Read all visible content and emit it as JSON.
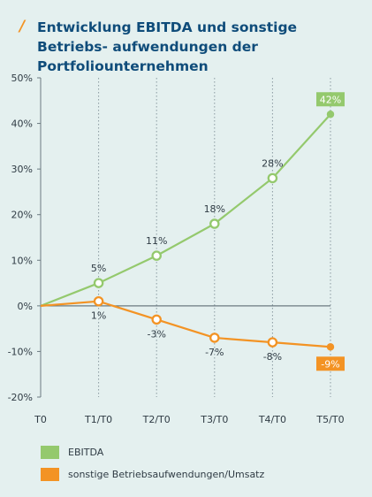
{
  "header": {
    "title": "Entwicklung EBITDA und sonstige Betriebs- aufwendungen der Portfoliounternehmen"
  },
  "colors": {
    "accent_orange": "#f39324",
    "ebitda_green": "#94c96d",
    "title_blue": "#0f4c7a",
    "background": "#e4f0ef"
  },
  "chart_data": {
    "type": "line",
    "title": "Entwicklung EBITDA und sonstige Betriebs- aufwendungen der Portfoliounternehmen",
    "x": [
      "T0",
      "T1/T0",
      "T2/T0",
      "T3/T0",
      "T4/T0",
      "T5/T0"
    ],
    "ylim": [
      -20,
      50
    ],
    "yticks": [
      50,
      40,
      30,
      20,
      10,
      0,
      -10,
      -20
    ],
    "ytick_labels": [
      "50%",
      "40%",
      "30%",
      "20%",
      "10%",
      "0%",
      "-10%",
      "-20%"
    ],
    "grid": "vertical-dotted",
    "series": [
      {
        "name": "EBITDA",
        "color": "#94c96d",
        "values": [
          0,
          5,
          11,
          18,
          28,
          42
        ],
        "labels": [
          "",
          "5%",
          "11%",
          "18%",
          "28%",
          "42%"
        ]
      },
      {
        "name": "sonstige Betriebsaufwendungen/Umsatz",
        "color": "#f39324",
        "values": [
          0,
          1,
          -3,
          -7,
          -8,
          -9
        ],
        "labels": [
          "",
          "1%",
          "-3%",
          "-7%",
          "-8%",
          "-9%"
        ]
      }
    ]
  }
}
